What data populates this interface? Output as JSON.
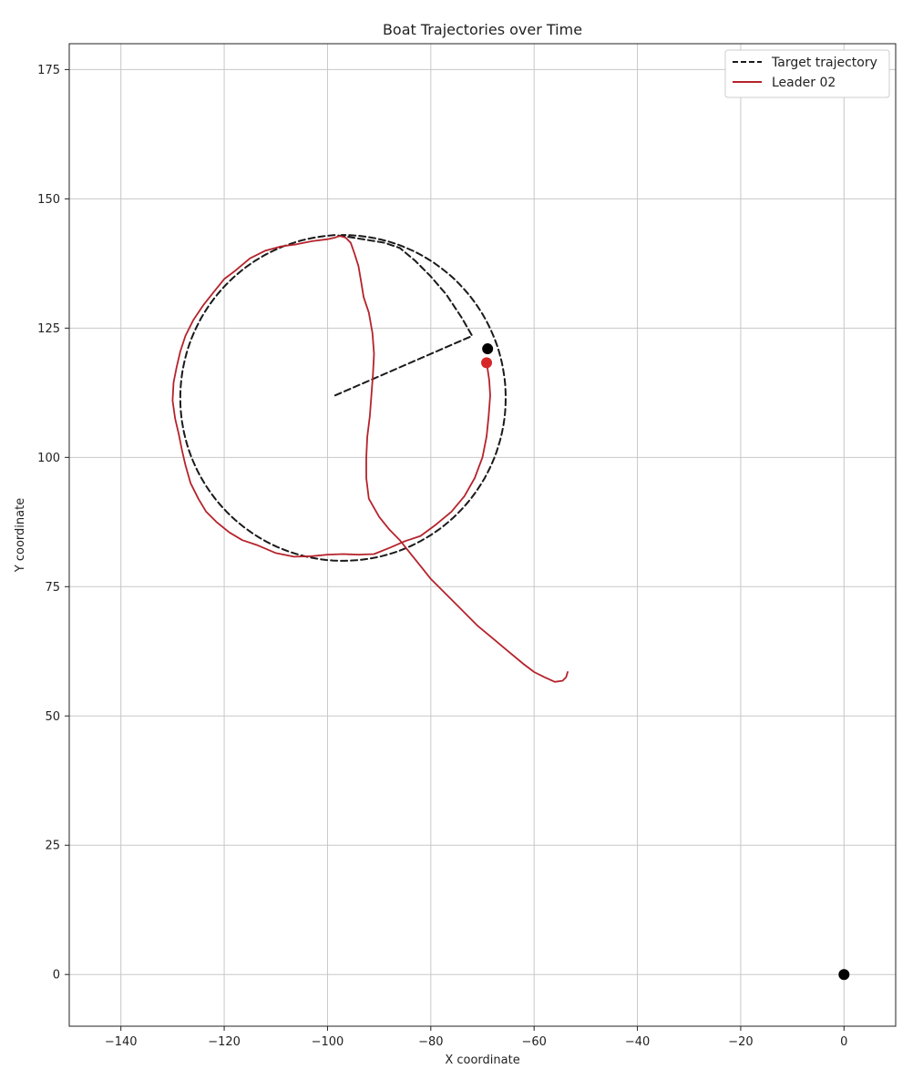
{
  "chart_data": {
    "type": "line",
    "title": "Boat Trajectories over Time",
    "xlabel": "X coordinate",
    "ylabel": "Y coordinate",
    "xlim": [
      -150,
      10
    ],
    "ylim": [
      -10,
      180
    ],
    "xticks": [
      -140,
      -120,
      -100,
      -80,
      -60,
      -40,
      -20,
      0
    ],
    "yticks": [
      0,
      25,
      50,
      75,
      100,
      125,
      150,
      175
    ],
    "xtick_labels": [
      "−140",
      "−120",
      "−100",
      "−80",
      "−60",
      "−40",
      "−20",
      "0"
    ],
    "ytick_labels": [
      "0",
      "25",
      "50",
      "75",
      "100",
      "125",
      "150",
      "175"
    ],
    "grid": true,
    "legend_position": "top-right",
    "series": [
      {
        "name": "Target trajectory",
        "color": "#1a1a1a",
        "style": "dashed",
        "x": [
          -98.5,
          -72,
          -74,
          -77,
          -80,
          -83,
          -86,
          -89,
          -92,
          -95,
          -98.5
        ],
        "y": [
          112,
          123.5,
          127,
          131.5,
          135,
          138,
          140.5,
          141.5,
          142,
          142.5,
          143
        ],
        "circle": {
          "cx": -97,
          "cy": 111.5,
          "r": 31.5,
          "start_deg": 96.5,
          "end_deg": 452
        }
      },
      {
        "name": "Leader 02",
        "color": "#b5232b",
        "style": "solid",
        "x": [
          -53.5,
          -53.8,
          -54.5,
          -56,
          -58,
          -60,
          -62,
          -65,
          -68,
          -71,
          -74,
          -77,
          -80,
          -82,
          -84,
          -86,
          -88,
          -90,
          -92,
          -92.5,
          -92.5,
          -92.3,
          -91.8,
          -91.5,
          -91.2,
          -91,
          -91.3,
          -92,
          -93,
          -93.5,
          -94,
          -94.8,
          -95.5,
          -96.5,
          -97.5,
          -98,
          -98.6,
          -100,
          -103,
          -106,
          -109,
          -112,
          -115,
          -118,
          -120,
          -122,
          -124,
          -126,
          -127.5,
          -128.5,
          -129.2,
          -129.8,
          -130,
          -129.5,
          -128.8,
          -128.2,
          -127.5,
          -126.5,
          -125,
          -123.5,
          -121.5,
          -119,
          -116.5,
          -113.5,
          -110,
          -106.5,
          -103,
          -100,
          -97,
          -94,
          -91,
          -88,
          -85,
          -82,
          -79,
          -76,
          -73.5,
          -71.5,
          -70,
          -69.2,
          -68.8,
          -68.5,
          -68.7,
          -69,
          -69.2
        ],
        "y": [
          58.5,
          57.5,
          56.8,
          56.6,
          57.5,
          58.5,
          60,
          62.5,
          65,
          67.5,
          70.5,
          73.5,
          76.5,
          79,
          81.5,
          84,
          86,
          88.5,
          92,
          96,
          100,
          104,
          108,
          112,
          116,
          120,
          124,
          128,
          131,
          134,
          137,
          139.5,
          141.5,
          142.5,
          142.8,
          142.7,
          142.5,
          142.2,
          141.8,
          141.2,
          140.8,
          140,
          138.5,
          136,
          134.5,
          132,
          129.5,
          126.5,
          123.5,
          120.5,
          117.5,
          114.5,
          111,
          107.5,
          104.5,
          101.5,
          98.5,
          95,
          92,
          89.5,
          87.5,
          85.5,
          84,
          83,
          81.5,
          80.8,
          80.9,
          81.2,
          81.3,
          81.2,
          81.3,
          82.5,
          83.8,
          84.8,
          87,
          89.5,
          92.5,
          96,
          100,
          104,
          108,
          112,
          115,
          117,
          118.5
        ]
      }
    ],
    "points": [
      {
        "x": -69,
        "y": 121,
        "color": "#000000"
      },
      {
        "x": -69.2,
        "y": 118.3,
        "color": "#d62728"
      },
      {
        "x": 0,
        "y": 0,
        "color": "#000000"
      }
    ]
  }
}
